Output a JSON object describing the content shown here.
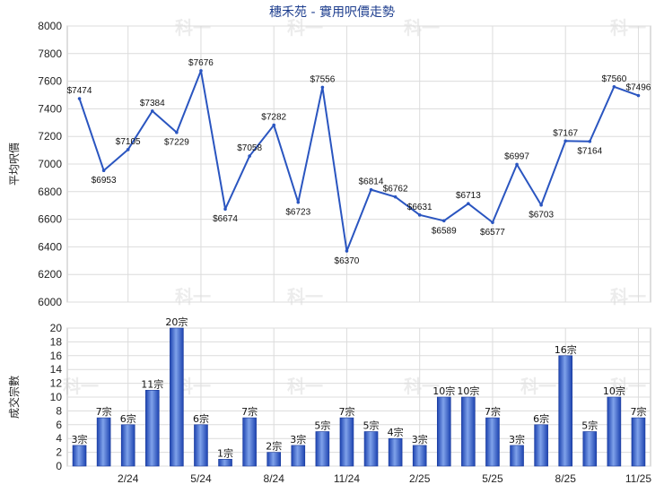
{
  "chart_data": [
    {
      "type": "line",
      "title": "穗禾苑 - 實用呎價走勢",
      "ylabel": "平均呎價",
      "ylim": [
        6000,
        8000
      ],
      "y_ticks": [
        "8000",
        "7800",
        "7600",
        "7400",
        "7200",
        "7000",
        "6800",
        "6600",
        "6400",
        "6200",
        "6000"
      ],
      "color": "#2a55c0",
      "x_tick_labels": [
        {
          "label": "2/24",
          "index": 2
        },
        {
          "label": "5/24",
          "index": 5
        },
        {
          "label": "8/24",
          "index": 8
        },
        {
          "label": "11/24",
          "index": 11
        },
        {
          "label": "2/25",
          "index": 14
        },
        {
          "label": "5/25",
          "index": 17
        },
        {
          "label": "8/25",
          "index": 20
        },
        {
          "label": "11/25",
          "index": 23
        }
      ],
      "values": [
        7474,
        6953,
        7105,
        7384,
        7229,
        7676,
        6674,
        7058,
        7282,
        6723,
        7556,
        6370,
        6814,
        6762,
        6631,
        6589,
        6713,
        6577,
        6997,
        6703,
        7167,
        7164,
        7560,
        7496
      ],
      "labels": [
        "$7474",
        "$6953",
        "$7105",
        "$7384",
        "$7229",
        "$7676",
        "$6674",
        "$7058",
        "$7282",
        "$6723",
        "$7556",
        "$6370",
        "$6814",
        "$6762",
        "$6631",
        "$6589",
        "$6713",
        "$6577",
        "$6997",
        "$6703",
        "$7167",
        "$7164",
        "$7560",
        "$7496"
      ]
    },
    {
      "type": "bar",
      "ylabel": "成交宗數",
      "ylim": [
        0,
        20
      ],
      "y_ticks": [
        "20",
        "18",
        "16",
        "14",
        "12",
        "10",
        "8",
        "6",
        "4",
        "2",
        "0"
      ],
      "color": "#2a55c0",
      "values": [
        3,
        7,
        6,
        11,
        20,
        6,
        1,
        7,
        2,
        3,
        5,
        7,
        5,
        4,
        3,
        10,
        10,
        7,
        3,
        6,
        16,
        5,
        10,
        7
      ],
      "labels": [
        "3宗",
        "7宗",
        "6宗",
        "11宗",
        "20宗",
        "6宗",
        "1宗",
        "7宗",
        "2宗",
        "3宗",
        "5宗",
        "7宗",
        "5宗",
        "4宗",
        "3宗",
        "10宗",
        "10宗",
        "7宗",
        "3宗",
        "6宗",
        "16宗",
        "5宗",
        "10宗",
        "7宗"
      ],
      "x_tick_labels": [
        {
          "label": "2/24",
          "index": 2
        },
        {
          "label": "5/24",
          "index": 5
        },
        {
          "label": "8/24",
          "index": 8
        },
        {
          "label": "11/24",
          "index": 11
        },
        {
          "label": "2/25",
          "index": 14
        },
        {
          "label": "5/25",
          "index": 17
        },
        {
          "label": "8/25",
          "index": 20
        },
        {
          "label": "11/25",
          "index": 23
        }
      ]
    }
  ],
  "watermark": "科一"
}
